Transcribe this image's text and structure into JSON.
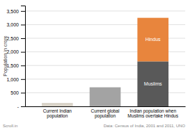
{
  "chart_data": {
    "type": "bar",
    "categories": [
      "Current Indian\npopulation",
      "Current global\npopulation",
      "Indian population when\nMuslims overtake Hindus"
    ],
    "stacked": true,
    "series": [
      {
        "colors": [
          "#d9d3c8",
          "#a3a3a3",
          null
        ],
        "values": [
          125,
          700,
          null
        ]
      },
      {
        "name": "Muslims",
        "color": "#595959",
        "values": [
          null,
          null,
          1650
        ]
      },
      {
        "name": "Hindus",
        "color": "#e8853d",
        "values": [
          null,
          null,
          1600
        ]
      }
    ],
    "ylabel": "Population in crore",
    "ylim": [
      0,
      3700
    ],
    "yticks": [
      {
        "value": 0,
        "label": "-"
      },
      500,
      {
        "value": 1000,
        "label": "1,000"
      },
      {
        "value": 1500,
        "label": "1,500"
      },
      {
        "value": 2000,
        "label": "2,000"
      },
      {
        "value": 2500,
        "label": "2,500"
      },
      {
        "value": 3000,
        "label": "3,000"
      },
      {
        "value": 3500,
        "label": "3,500"
      }
    ],
    "grid": true,
    "annotations": [
      "Scroll.in",
      "Data: Census of India, 2001 and 2011, UNO"
    ]
  }
}
